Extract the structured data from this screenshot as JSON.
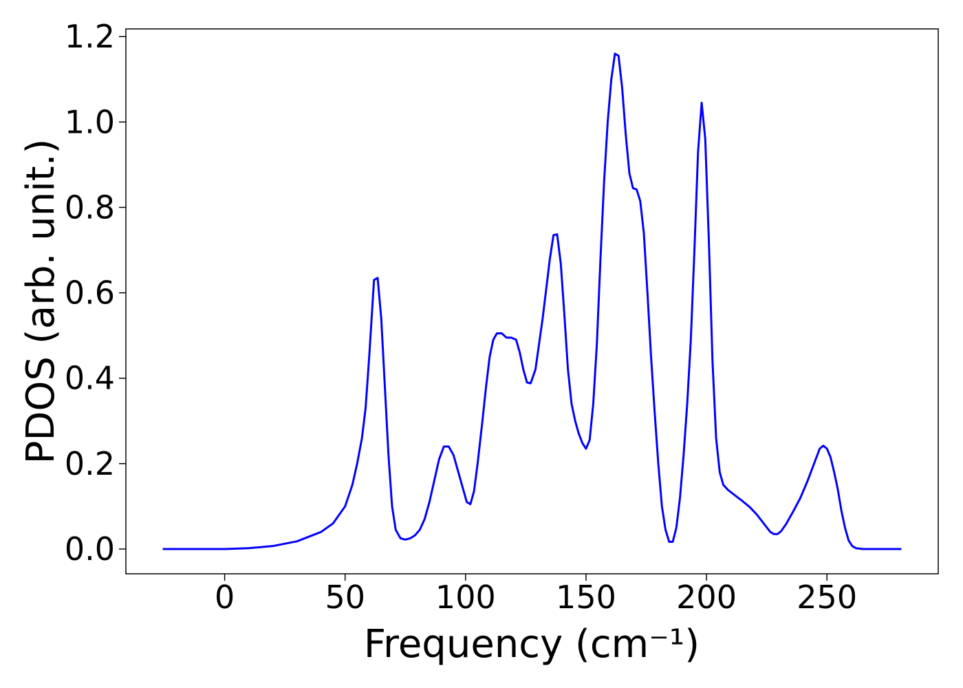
{
  "chart_data": {
    "type": "line",
    "xlabel": "Frequency (cm⁻¹)",
    "ylabel": "PDOS (arb. unit.)",
    "xlim": [
      -41,
      296.2
    ],
    "ylim": [
      -0.058,
      1.218
    ],
    "xticks": [
      0,
      50,
      100,
      150,
      200,
      250
    ],
    "yticks": [
      {
        "value": 0,
        "label": "0.0"
      },
      {
        "value": 0.2,
        "label": "0.2"
      },
      {
        "value": 0.4,
        "label": "0.4"
      },
      {
        "value": 0.6,
        "label": "0.6"
      },
      {
        "value": 0.8,
        "label": "0.8"
      },
      {
        "value": 1.0,
        "label": "1.0"
      },
      {
        "value": 1.2,
        "label": "1.2"
      }
    ],
    "x": [
      -25.7,
      0,
      10,
      20,
      30,
      40,
      45,
      50,
      53,
      55,
      57,
      58.5,
      60,
      61,
      62,
      63.5,
      65,
      66.5,
      68,
      69.5,
      71,
      73,
      75,
      77,
      79,
      81,
      83,
      85,
      87,
      89,
      91,
      93,
      95,
      97,
      99,
      100.5,
      102,
      103.5,
      105,
      107,
      108.5,
      110,
      111.5,
      113,
      115,
      117,
      119,
      121,
      122.5,
      124,
      125.5,
      127,
      129,
      130.5,
      132,
      133.5,
      135,
      136.5,
      138,
      139.5,
      141,
      142.5,
      144,
      145.5,
      147,
      148.5,
      150,
      151.5,
      153,
      154.5,
      156,
      157.5,
      159,
      160.5,
      162,
      163.5,
      165,
      166.5,
      168,
      169.5,
      171,
      172.5,
      174,
      175.5,
      177,
      178.5,
      180,
      181.5,
      183,
      184.5,
      186,
      187.5,
      189,
      190.5,
      192,
      193.5,
      195,
      196.5,
      198,
      199.5,
      201,
      202.5,
      204,
      205.5,
      207,
      209,
      212,
      215,
      218,
      221,
      224,
      226.5,
      228,
      229.5,
      231,
      233,
      236,
      239,
      242,
      245,
      247,
      248.5,
      250,
      251.5,
      253,
      254.5,
      256,
      257.5,
      259,
      260.5,
      262,
      265,
      280.9
    ],
    "series": [
      {
        "name": "PDOS",
        "color": "#0000ff",
        "values": [
          0,
          0,
          0.002,
          0.007,
          0.018,
          0.04,
          0.06,
          0.1,
          0.15,
          0.2,
          0.26,
          0.33,
          0.45,
          0.54,
          0.63,
          0.635,
          0.54,
          0.38,
          0.22,
          0.1,
          0.045,
          0.025,
          0.022,
          0.025,
          0.032,
          0.045,
          0.07,
          0.11,
          0.16,
          0.21,
          0.24,
          0.24,
          0.22,
          0.18,
          0.14,
          0.11,
          0.105,
          0.135,
          0.2,
          0.3,
          0.38,
          0.45,
          0.49,
          0.505,
          0.505,
          0.495,
          0.495,
          0.49,
          0.46,
          0.42,
          0.39,
          0.388,
          0.42,
          0.48,
          0.54,
          0.61,
          0.68,
          0.735,
          0.737,
          0.67,
          0.55,
          0.42,
          0.34,
          0.3,
          0.27,
          0.248,
          0.235,
          0.255,
          0.34,
          0.48,
          0.68,
          0.86,
          1.0,
          1.1,
          1.16,
          1.155,
          1.08,
          0.97,
          0.88,
          0.845,
          0.842,
          0.815,
          0.74,
          0.6,
          0.45,
          0.32,
          0.2,
          0.1,
          0.045,
          0.017,
          0.017,
          0.05,
          0.12,
          0.22,
          0.34,
          0.49,
          0.7,
          0.93,
          1.045,
          0.96,
          0.72,
          0.44,
          0.26,
          0.18,
          0.15,
          0.138,
          0.125,
          0.112,
          0.098,
          0.08,
          0.058,
          0.04,
          0.035,
          0.035,
          0.042,
          0.058,
          0.088,
          0.12,
          0.16,
          0.205,
          0.235,
          0.242,
          0.235,
          0.215,
          0.18,
          0.14,
          0.09,
          0.05,
          0.02,
          0.007,
          0.002,
          0,
          0
        ]
      }
    ]
  }
}
